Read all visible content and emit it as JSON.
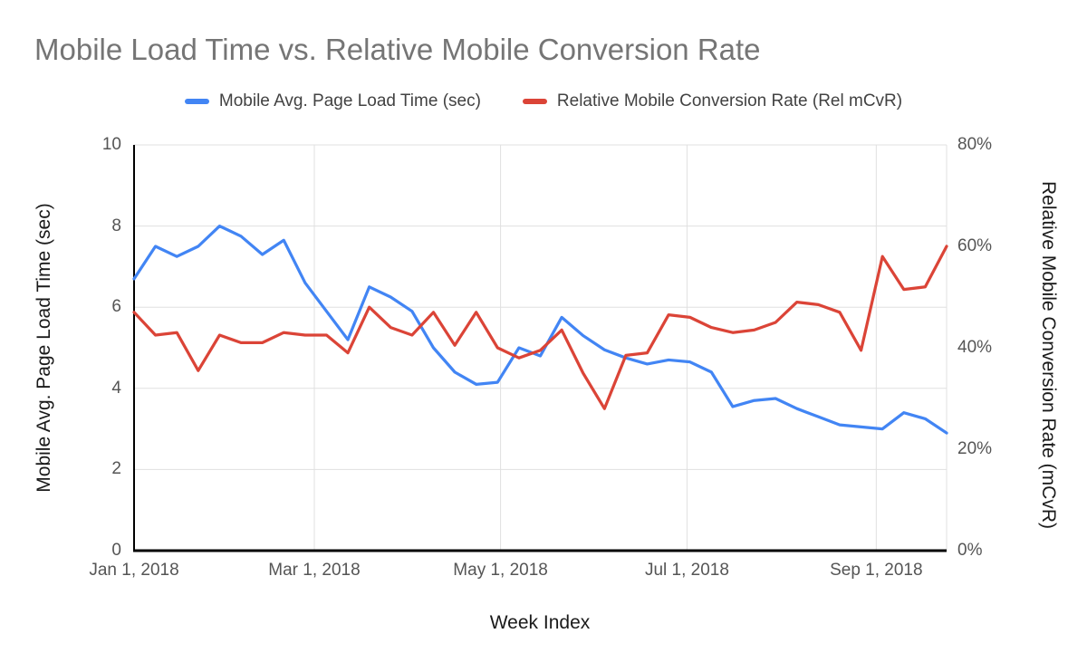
{
  "title": "Mobile Load Time vs. Relative Mobile Conversion Rate",
  "legend": [
    {
      "label": "Mobile Avg. Page Load Time (sec)",
      "color": "#4285f4"
    },
    {
      "label": "Relative Mobile Conversion Rate (Rel mCvR)",
      "color": "#db4437"
    }
  ],
  "axes": {
    "x_title": "Week Index",
    "y_left_title": "Mobile Avg. Page Load Time (sec)",
    "y_right_title": "Relative Mobile Conversion Rate (mCvR)",
    "y_left_tick_values": [
      0,
      2,
      4,
      6,
      8,
      10
    ],
    "y_left_tick_labels": [
      "0",
      "2",
      "4",
      "6",
      "8",
      "10"
    ],
    "y_right_tick_values": [
      0,
      20,
      40,
      60,
      80
    ],
    "y_right_tick_labels": [
      "0%",
      "20%",
      "40%",
      "60%",
      "80%"
    ],
    "x_tick_weeks": [
      0,
      8.43,
      17.14,
      25.86,
      34.71
    ],
    "x_tick_labels": [
      "Jan 1, 2018",
      "Mar 1, 2018",
      "May 1, 2018",
      "Jul 1, 2018",
      "Sep 1, 2018"
    ],
    "y_left_range": [
      0,
      10
    ],
    "y_right_range": [
      0,
      80
    ],
    "x_range_weeks": [
      0,
      38
    ],
    "grid": "on",
    "legend_position": "top"
  },
  "chart_data": {
    "type": "line",
    "title": "Mobile Load Time vs. Relative Mobile Conversion Rate",
    "xlabel": "Week Index",
    "x_unit": "weeks since Jan 1, 2018",
    "x": [
      0,
      1,
      2,
      3,
      4,
      5,
      6,
      7,
      8,
      9,
      10,
      11,
      12,
      13,
      14,
      15,
      16,
      17,
      18,
      19,
      20,
      21,
      22,
      23,
      24,
      25,
      26,
      27,
      28,
      29,
      30,
      31,
      32,
      33,
      34,
      35,
      36,
      37,
      38
    ],
    "series": [
      {
        "name": "Mobile Avg. Page Load Time (sec)",
        "axis": "left",
        "unit": "sec",
        "color": "#4285f4",
        "values": [
          6.7,
          7.5,
          7.25,
          7.5,
          8.0,
          7.75,
          7.3,
          7.65,
          6.6,
          5.9,
          5.2,
          6.5,
          6.25,
          5.9,
          5.0,
          4.4,
          4.1,
          4.15,
          5.0,
          4.8,
          5.75,
          5.3,
          4.95,
          4.75,
          4.6,
          4.7,
          4.65,
          4.4,
          3.55,
          3.7,
          3.75,
          3.5,
          3.3,
          3.1,
          3.05,
          3.0,
          3.4,
          3.25,
          2.9
        ]
      },
      {
        "name": "Relative Mobile Conversion Rate (Rel mCvR)",
        "axis": "right",
        "unit": "%",
        "color": "#db4437",
        "values": [
          47,
          42.5,
          43,
          35.5,
          42.5,
          41,
          41,
          43,
          42.5,
          42.5,
          39,
          48,
          44,
          42.5,
          47,
          40.5,
          47,
          40,
          38,
          39.5,
          43.5,
          35,
          28,
          38.5,
          39,
          46.5,
          46,
          44,
          43,
          43.5,
          45,
          49,
          48.5,
          47,
          39.5,
          58,
          51.5,
          52,
          60
        ]
      }
    ]
  },
  "colors": {
    "series_load_time": "#4285f4",
    "series_conversion_rate": "#db4437",
    "grid": "#e0e0e0",
    "axis_line": "#000000",
    "title_text": "#757575",
    "tick_text": "#555555",
    "background": "#ffffff"
  }
}
